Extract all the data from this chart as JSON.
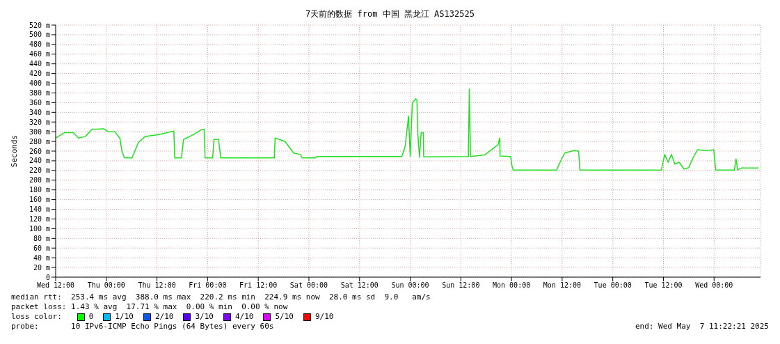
{
  "chart_data": {
    "type": "line",
    "title": "7天前的数据 from 中国 黑龙江 AS132525",
    "ylabel": "Seconds",
    "x": [
      "2025-04-30T12:00",
      "2025-04-30T14:06",
      "2025-04-30T16:12",
      "2025-04-30T17:24",
      "2025-04-30T19:00",
      "2025-04-30T20:36",
      "2025-04-30T23:24",
      "2025-05-01T00:24",
      "2025-05-01T02:00",
      "2025-05-01T03:12",
      "2025-05-01T03:42",
      "2025-05-01T04:18",
      "2025-05-01T06:06",
      "2025-05-01T07:36",
      "2025-05-01T09:12",
      "2025-05-01T12:30",
      "2025-05-01T15:42",
      "2025-05-01T16:00",
      "2025-05-01T16:12",
      "2025-05-01T17:48",
      "2025-05-01T18:18",
      "2025-05-01T20:36",
      "2025-05-01T22:42",
      "2025-05-01T23:12",
      "2025-05-01T23:24",
      "2025-05-02T01:12",
      "2025-05-02T01:30",
      "2025-05-02T02:36",
      "2025-05-02T03:06",
      "2025-05-02T15:48",
      "2025-05-02T16:00",
      "2025-05-02T18:18",
      "2025-05-02T20:24",
      "2025-05-02T22:00",
      "2025-05-02T22:24",
      "2025-05-03T01:36",
      "2025-05-03T02:00",
      "2025-05-03T22:00",
      "2025-05-03T22:48",
      "2025-05-03T23:36",
      "2025-05-04T00:00",
      "2025-05-04T00:30",
      "2025-05-04T01:18",
      "2025-05-04T01:36",
      "2025-05-04T01:48",
      "2025-05-04T02:12",
      "2025-05-04T02:36",
      "2025-05-04T03:06",
      "2025-05-04T03:12",
      "2025-05-04T13:48",
      "2025-05-04T14:00",
      "2025-05-04T14:18",
      "2025-05-04T17:36",
      "2025-05-04T20:48",
      "2025-05-04T21:12",
      "2025-05-04T21:18",
      "2025-05-04T23:48",
      "2025-05-05T00:06",
      "2025-05-05T00:24",
      "2025-05-05T10:42",
      "2025-05-05T11:30",
      "2025-05-05T12:36",
      "2025-05-05T14:48",
      "2025-05-05T15:54",
      "2025-05-05T16:12",
      "2025-05-06T11:30",
      "2025-05-06T12:18",
      "2025-05-06T13:06",
      "2025-05-06T13:54",
      "2025-05-06T14:42",
      "2025-05-06T15:42",
      "2025-05-06T16:54",
      "2025-05-06T18:00",
      "2025-05-06T19:00",
      "2025-05-06T20:06",
      "2025-05-06T22:12",
      "2025-05-06T23:54",
      "2025-05-07T00:24",
      "2025-05-07T04:48",
      "2025-05-07T05:12",
      "2025-05-07T05:36",
      "2025-05-07T06:24",
      "2025-05-07T10:36"
    ],
    "series": [
      {
        "color": "#20e020",
        "values": [
          287,
          298,
          298,
          287,
          290,
          305,
          306,
          300,
          300,
          287,
          260,
          246,
          246,
          278,
          290,
          294,
          301,
          301,
          246,
          246,
          284,
          294,
          305,
          305,
          246,
          246,
          284,
          284,
          246,
          246,
          287,
          280,
          256,
          253,
          246,
          246,
          249,
          249,
          269,
          332,
          249,
          359,
          368,
          365,
          297,
          247,
          298,
          298,
          248,
          249,
          388,
          249,
          252,
          273,
          287,
          250,
          249,
          230,
          221,
          221,
          237,
          256,
          261,
          260,
          221,
          221,
          253,
          237,
          253,
          233,
          237,
          223,
          226,
          246,
          263,
          261,
          263,
          221,
          221,
          244,
          221,
          225,
          225
        ]
      }
    ],
    "xlim": [
      "2025-04-30T12:00",
      "2025-05-07T11:00"
    ],
    "xticks": [
      {
        "value": "2025-04-30T12:00",
        "label": "Wed 12:00"
      },
      {
        "value": "2025-05-01T00:00",
        "label": "Thu 00:00"
      },
      {
        "value": "2025-05-01T12:00",
        "label": "Thu 12:00"
      },
      {
        "value": "2025-05-02T00:00",
        "label": "Fri 00:00"
      },
      {
        "value": "2025-05-02T12:00",
        "label": "Fri 12:00"
      },
      {
        "value": "2025-05-03T00:00",
        "label": "Sat 00:00"
      },
      {
        "value": "2025-05-03T12:00",
        "label": "Sat 12:00"
      },
      {
        "value": "2025-05-04T00:00",
        "label": "Sun 00:00"
      },
      {
        "value": "2025-05-04T12:00",
        "label": "Sun 12:00"
      },
      {
        "value": "2025-05-05T00:00",
        "label": "Mon 00:00"
      },
      {
        "value": "2025-05-05T12:00",
        "label": "Mon 12:00"
      },
      {
        "value": "2025-05-06T00:00",
        "label": "Tue 00:00"
      },
      {
        "value": "2025-05-06T12:00",
        "label": "Tue 12:00"
      },
      {
        "value": "2025-05-07T00:00",
        "label": "Wed 00:00"
      }
    ],
    "ylim": [
      0,
      520
    ],
    "yticks": [
      0,
      {
        "value": 20,
        "label": "20 m"
      },
      {
        "value": 40,
        "label": "40 m"
      },
      {
        "value": 60,
        "label": "60 m"
      },
      {
        "value": 80,
        "label": "80 m"
      },
      {
        "value": 100,
        "label": "100 m"
      },
      {
        "value": 120,
        "label": "120 m"
      },
      {
        "value": 140,
        "label": "140 m"
      },
      {
        "value": 160,
        "label": "160 m"
      },
      {
        "value": 180,
        "label": "180 m"
      },
      {
        "value": 200,
        "label": "200 m"
      },
      {
        "value": 220,
        "label": "220 m"
      },
      {
        "value": 240,
        "label": "240 m"
      },
      {
        "value": 260,
        "label": "260 m"
      },
      {
        "value": 280,
        "label": "280 m"
      },
      {
        "value": 300,
        "label": "300 m"
      },
      {
        "value": 320,
        "label": "320 m"
      },
      {
        "value": 340,
        "label": "340 m"
      },
      {
        "value": 360,
        "label": "360 m"
      },
      {
        "value": 380,
        "label": "380 m"
      },
      {
        "value": 400,
        "label": "400 m"
      },
      {
        "value": 420,
        "label": "420 m"
      },
      {
        "value": 440,
        "label": "440 m"
      },
      {
        "value": 460,
        "label": "460 m"
      },
      {
        "value": 480,
        "label": "480 m"
      },
      {
        "value": 500,
        "label": "500 m"
      },
      {
        "value": 520,
        "label": "520 m"
      }
    ],
    "grid": true,
    "annotations": [
      "median rtt:  253.4 ms avg  388.0 ms max  220.2 ms min  224.9 ms now  28.0 ms sd  9.0   am/s",
      "packet loss: 1.43 % avg  17.71 % max  0.00 % min  0.00 % now",
      "loss color:",
      "0",
      "1/10",
      "2/10",
      "3/10",
      "4/10",
      "5/10",
      "9/10",
      "probe:       10 IPv6-ICMP Echo Pings (64 Bytes) every 60s",
      "end: Wed May  7 11:22:21 2025"
    ]
  }
}
